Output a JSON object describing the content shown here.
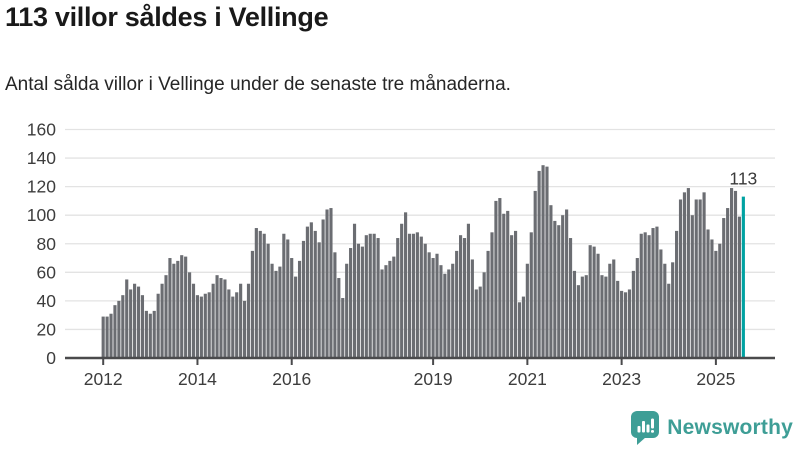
{
  "header": {
    "title": "113 villor såldes i Vellinge",
    "subtitle": "Antal sålda villor i Vellinge under de senaste tre månaderna."
  },
  "chart_data": {
    "type": "bar",
    "title": "113 villor såldes i Vellinge",
    "subtitle": "Antal sålda villor i Vellinge under de senaste tre månaderna.",
    "xlabel": "",
    "ylabel": "",
    "x_unit": "month",
    "x_start": "2012-01",
    "ylim": [
      0,
      160
    ],
    "yticks": [
      0,
      20,
      40,
      60,
      80,
      100,
      120,
      140,
      160
    ],
    "xtick_years": [
      2012,
      2014,
      2016,
      2019,
      2021,
      2023,
      2025
    ],
    "grid": true,
    "legend": "none",
    "bar_color": "#6b6d72",
    "highlight_color": "#00a2a2",
    "values": [
      29,
      29,
      31,
      37,
      40,
      44,
      55,
      48,
      52,
      50,
      44,
      33,
      31,
      33,
      45,
      52,
      58,
      70,
      66,
      68,
      72,
      71,
      60,
      52,
      44,
      43,
      45,
      46,
      52,
      58,
      56,
      55,
      48,
      43,
      46,
      52,
      40,
      52,
      75,
      91,
      89,
      87,
      80,
      66,
      61,
      64,
      87,
      83,
      70,
      57,
      68,
      82,
      92,
      95,
      89,
      81,
      97,
      104,
      105,
      74,
      56,
      42,
      66,
      77,
      94,
      80,
      78,
      86,
      87,
      87,
      84,
      62,
      65,
      68,
      71,
      84,
      94,
      102,
      87,
      87,
      88,
      85,
      80,
      74,
      70,
      73,
      65,
      59,
      62,
      66,
      75,
      86,
      84,
      94,
      69,
      48,
      50,
      60,
      75,
      88,
      110,
      112,
      101,
      103,
      86,
      89,
      39,
      43,
      66,
      88,
      117,
      131,
      135,
      134,
      107,
      96,
      93,
      100,
      104,
      84,
      61,
      51,
      57,
      58,
      79,
      78,
      73,
      58,
      57,
      66,
      69,
      54,
      47,
      46,
      48,
      61,
      70,
      87,
      88,
      86,
      91,
      92,
      76,
      66,
      52,
      67,
      89,
      111,
      116,
      119,
      100,
      111,
      111,
      116,
      90,
      83,
      75,
      80,
      98,
      105,
      119,
      117,
      99,
      113
    ],
    "highlight": {
      "index": 163,
      "value": 113,
      "label": "113"
    }
  },
  "colors": {
    "bar_gray": "#6b6d72",
    "highlight_teal": "#00a2a2",
    "brand_teal": "#3e9e96",
    "grid_line": "#e3e3e3",
    "axis_line": "#4a4a4c",
    "tick_label": "#3d3d3d",
    "annotation": "#3a3a3a",
    "title_text": "#191919",
    "subtitle_text": "#262626"
  },
  "footer": {
    "brand": "Newsworthy"
  }
}
